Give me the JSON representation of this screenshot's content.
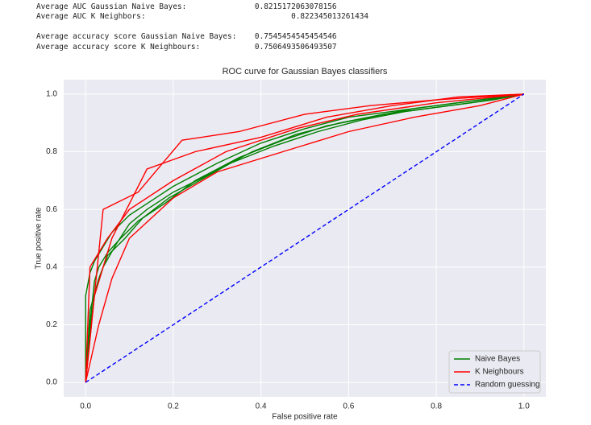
{
  "output": [
    "Average AUC Gaussian Naive Bayes:               0.8215172063078156",
    "Average AUC K Neighbors:                                0.822345013261434",
    "Average accuracy score Gaussian Naive Bayes:    0.7545454545454546",
    "Average accuracy score K Neighbours:            0.7506493506493507"
  ],
  "chart_data": {
    "type": "line",
    "title": "ROC curve for Gaussian Bayes classifiers",
    "xlabel": "False positive rate",
    "ylabel": "True positive rate",
    "xlim": [
      -0.05,
      1.05
    ],
    "ylim": [
      -0.05,
      1.05
    ],
    "xticks": [
      {
        "value": 0,
        "label": "0.0"
      },
      {
        "value": 0.2,
        "label": "0.2"
      },
      {
        "value": 0.4,
        "label": "0.4"
      },
      {
        "value": 0.6,
        "label": "0.6"
      },
      {
        "value": 0.8,
        "label": "0.8"
      },
      {
        "value": 1,
        "label": "1.0"
      }
    ],
    "yticks": [
      {
        "value": 0,
        "label": "0.0"
      },
      {
        "value": 0.2,
        "label": "0.2"
      },
      {
        "value": 0.4,
        "label": "0.4"
      },
      {
        "value": 0.6,
        "label": "0.6"
      },
      {
        "value": 0.8,
        "label": "0.8"
      },
      {
        "value": 1,
        "label": "1.0"
      }
    ],
    "grid": true,
    "legend": "lower right",
    "series": [
      {
        "name": "Naive Bayes",
        "color": "#008000",
        "linestyle": "solid",
        "curves": [
          {
            "x": [
              0,
              0,
              0.01,
              0.02,
              0.04,
              0.06,
              0.1,
              0.15,
              0.2,
              0.3,
              0.4,
              0.5,
              0.6,
              0.7,
              0.8,
              0.9,
              1
            ],
            "y": [
              0,
              0.3,
              0.38,
              0.42,
              0.47,
              0.52,
              0.58,
              0.63,
              0.68,
              0.76,
              0.83,
              0.88,
              0.92,
              0.94,
              0.96,
              0.98,
              1
            ]
          },
          {
            "x": [
              0,
              0.01,
              0.02,
              0.03,
              0.05,
              0.08,
              0.12,
              0.18,
              0.25,
              0.35,
              0.45,
              0.55,
              0.65,
              0.75,
              0.85,
              0.95,
              1
            ],
            "y": [
              0,
              0.2,
              0.35,
              0.4,
              0.45,
              0.5,
              0.56,
              0.62,
              0.7,
              0.78,
              0.84,
              0.89,
              0.92,
              0.95,
              0.97,
              0.99,
              1
            ]
          },
          {
            "x": [
              0,
              0.005,
              0.02,
              0.04,
              0.07,
              0.1,
              0.14,
              0.2,
              0.28,
              0.38,
              0.48,
              0.58,
              0.68,
              0.78,
              0.88,
              1
            ],
            "y": [
              0,
              0.12,
              0.3,
              0.4,
              0.48,
              0.55,
              0.6,
              0.66,
              0.72,
              0.8,
              0.86,
              0.9,
              0.93,
              0.95,
              0.97,
              1
            ]
          },
          {
            "x": [
              0,
              0.01,
              0.03,
              0.05,
              0.09,
              0.13,
              0.19,
              0.26,
              0.33,
              0.43,
              0.53,
              0.63,
              0.73,
              0.83,
              0.93,
              1
            ],
            "y": [
              0,
              0.25,
              0.36,
              0.44,
              0.5,
              0.57,
              0.64,
              0.7,
              0.76,
              0.82,
              0.87,
              0.91,
              0.94,
              0.96,
              0.98,
              1
            ]
          }
        ]
      },
      {
        "name": "K Neighbours",
        "color": "#ff0000",
        "linestyle": "solid",
        "curves": [
          {
            "x": [
              0,
              0.04,
              0.12,
              0.22,
              0.35,
              0.5,
              0.65,
              0.8,
              1
            ],
            "y": [
              0,
              0.6,
              0.66,
              0.84,
              0.87,
              0.93,
              0.96,
              0.98,
              1
            ]
          },
          {
            "x": [
              0,
              0.02,
              0.06,
              0.14,
              0.25,
              0.4,
              0.55,
              0.7,
              0.85,
              1
            ],
            "y": [
              0,
              0.3,
              0.5,
              0.74,
              0.8,
              0.85,
              0.92,
              0.96,
              0.99,
              1
            ]
          },
          {
            "x": [
              0,
              0.03,
              0.06,
              0.1,
              0.2,
              0.3,
              0.45,
              0.6,
              0.75,
              0.9,
              1
            ],
            "y": [
              0,
              0.2,
              0.36,
              0.5,
              0.64,
              0.73,
              0.8,
              0.87,
              0.92,
              0.96,
              1
            ]
          },
          {
            "x": [
              0,
              0.01,
              0.05,
              0.1,
              0.2,
              0.32,
              0.48,
              0.62,
              0.8,
              1
            ],
            "y": [
              0,
              0.4,
              0.5,
              0.6,
              0.7,
              0.8,
              0.88,
              0.93,
              0.97,
              1
            ]
          }
        ]
      },
      {
        "name": "Random guessing",
        "color": "#0000ff",
        "linestyle": "dashed",
        "curves": [
          {
            "x": [
              0,
              1
            ],
            "y": [
              0,
              1
            ]
          }
        ]
      }
    ]
  }
}
